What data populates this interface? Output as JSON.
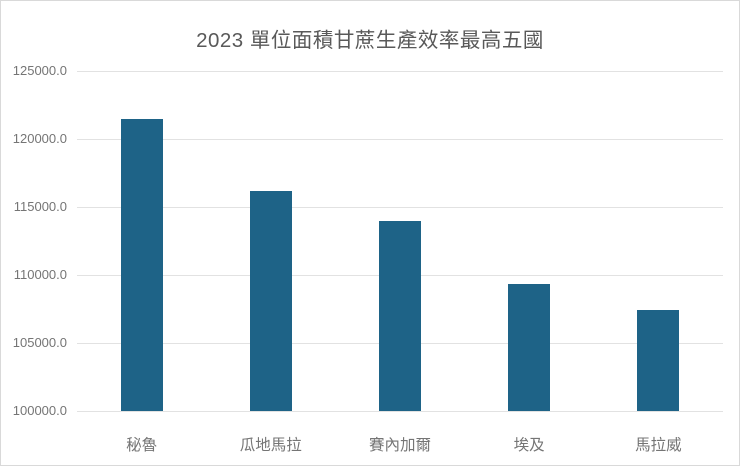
{
  "chart": {
    "title": "2023 單位面積甘蔗生產效率最高五國"
  },
  "chart_data": {
    "type": "bar",
    "title": "2023 單位面積甘蔗生產效率最高五國",
    "categories": [
      "秘魯",
      "瓜地馬拉",
      "賽內加爾",
      "埃及",
      "馬拉威"
    ],
    "values": [
      121450,
      116200,
      114000,
      109350,
      107450
    ],
    "xlabel": "",
    "ylabel": "",
    "ylim": [
      100000,
      125000
    ],
    "ytick_step": 5000,
    "ytick_labels": [
      "100000.0",
      "105000.0",
      "110000.0",
      "115000.0",
      "120000.0",
      "125000.0"
    ],
    "grid": true,
    "legend": false,
    "colors": {
      "bar": "#1e6387",
      "gridline": "#e2e2e2",
      "canvas_border": "#d9d9d9",
      "title_text": "#595959",
      "tick_text": "#757575"
    }
  }
}
